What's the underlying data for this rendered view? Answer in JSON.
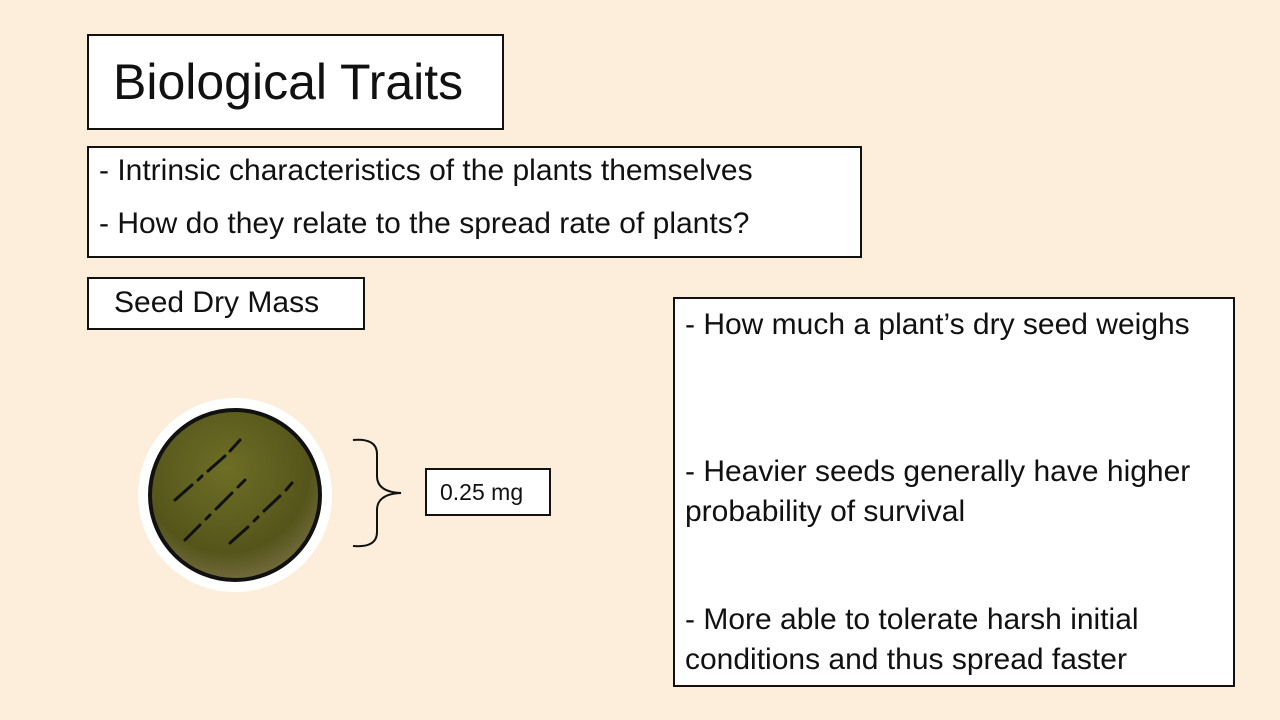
{
  "slide": {
    "title": "Biological Traits",
    "intro": [
      "- Intrinsic characteristics of the plants themselves",
      "- How do they relate to the spread rate of plants?"
    ],
    "seed_label": "Seed Dry Mass",
    "mass_value": "0.25 mg",
    "description": [
      "- How much a plant’s dry seed weighs",
      "- Heavier seeds generally have higher probability of survival",
      "- More able to tolerate harsh initial conditions and thus spread faster"
    ]
  },
  "colors": {
    "background": "#fdeedb",
    "seed_fill": "#5a5a1e",
    "border": "#111111"
  },
  "icons": [
    "seed-icon",
    "curly-brace-icon"
  ]
}
